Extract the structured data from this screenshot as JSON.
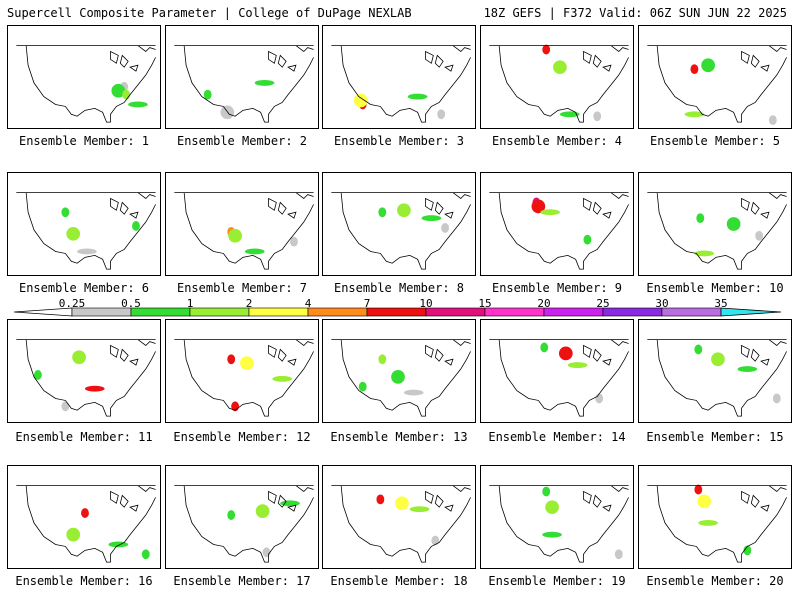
{
  "header": {
    "title_left": "Supercell Composite Parameter | College of DuPage NEXLAB",
    "title_right": "18Z GEFS | F372 Valid: 06Z SUN JUN 22 2025"
  },
  "members": [
    "Ensemble Member: 1",
    "Ensemble Member: 2",
    "Ensemble Member: 3",
    "Ensemble Member: 4",
    "Ensemble Member: 5",
    "Ensemble Member: 6",
    "Ensemble Member: 7",
    "Ensemble Member: 8",
    "Ensemble Member: 9",
    "Ensemble Member: 10",
    "Ensemble Member: 11",
    "Ensemble Member: 12",
    "Ensemble Member: 13",
    "Ensemble Member: 14",
    "Ensemble Member: 15",
    "Ensemble Member: 16",
    "Ensemble Member: 17",
    "Ensemble Member: 18",
    "Ensemble Member: 19",
    "Ensemble Member: 20"
  ],
  "colorbar": {
    "labels": [
      "0.25",
      "0.5",
      "1",
      "2",
      "4",
      "7",
      "10",
      "15",
      "20",
      "25",
      "30",
      "35"
    ],
    "colors": [
      "#c8c8c8",
      "#33dd33",
      "#99ee33",
      "#ffff44",
      "#ff8c1a",
      "#ee1111",
      "#e0117a",
      "#ff33cc",
      "#cc22ee",
      "#8a2be2",
      "#b86ee0",
      "#33e6ee"
    ]
  },
  "map_features": {
    "blobs": [
      [
        [
          118,
          62,
          "#c8c8c8"
        ],
        [
          112,
          66,
          "#33dd33"
        ],
        [
          132,
          80,
          "#33dd33"
        ],
        [
          120,
          70,
          "#99ee33"
        ]
      ],
      [
        [
          42,
          70,
          "#33dd33"
        ],
        [
          62,
          88,
          "#c8c8c8"
        ],
        [
          100,
          58,
          "#33dd33"
        ]
      ],
      [
        [
          40,
          80,
          "#ee1111"
        ],
        [
          38,
          76,
          "#ffff44"
        ],
        [
          96,
          72,
          "#33dd33"
        ],
        [
          120,
          90,
          "#c8c8c8"
        ]
      ],
      [
        [
          66,
          24,
          "#ee1111"
        ],
        [
          80,
          42,
          "#99ee33"
        ],
        [
          90,
          90,
          "#33dd33"
        ],
        [
          118,
          92,
          "#c8c8c8"
        ]
      ],
      [
        [
          56,
          44,
          "#ee1111"
        ],
        [
          70,
          40,
          "#33dd33"
        ],
        [
          56,
          90,
          "#99ee33"
        ],
        [
          136,
          96,
          "#c8c8c8"
        ]
      ],
      [
        [
          58,
          40,
          "#33dd33"
        ],
        [
          66,
          62,
          "#99ee33"
        ],
        [
          80,
          80,
          "#c8c8c8"
        ],
        [
          130,
          54,
          "#33dd33"
        ]
      ],
      [
        [
          66,
          60,
          "#ff8c1a"
        ],
        [
          70,
          64,
          "#99ee33"
        ],
        [
          90,
          80,
          "#33dd33"
        ],
        [
          130,
          70,
          "#c8c8c8"
        ]
      ],
      [
        [
          60,
          40,
          "#33dd33"
        ],
        [
          82,
          38,
          "#99ee33"
        ],
        [
          110,
          46,
          "#33dd33"
        ],
        [
          124,
          56,
          "#c8c8c8"
        ]
      ],
      [
        [
          56,
          30,
          "#e0117a"
        ],
        [
          58,
          34,
          "#ee1111"
        ],
        [
          70,
          40,
          "#99ee33"
        ],
        [
          108,
          68,
          "#33dd33"
        ]
      ],
      [
        [
          62,
          46,
          "#33dd33"
        ],
        [
          96,
          52,
          "#33dd33"
        ],
        [
          66,
          82,
          "#99ee33"
        ],
        [
          122,
          64,
          "#c8c8c8"
        ]
      ],
      [
        [
          30,
          56,
          "#33dd33"
        ],
        [
          72,
          38,
          "#99ee33"
        ],
        [
          88,
          70,
          "#ee1111"
        ],
        [
          58,
          88,
          "#c8c8c8"
        ]
      ],
      [
        [
          66,
          40,
          "#ee1111"
        ],
        [
          82,
          44,
          "#ffff44"
        ],
        [
          118,
          60,
          "#99ee33"
        ],
        [
          70,
          88,
          "#ee1111"
        ]
      ],
      [
        [
          60,
          40,
          "#99ee33"
        ],
        [
          76,
          58,
          "#33dd33"
        ],
        [
          92,
          74,
          "#c8c8c8"
        ],
        [
          40,
          68,
          "#33dd33"
        ]
      ],
      [
        [
          64,
          28,
          "#33dd33"
        ],
        [
          86,
          34,
          "#ee1111"
        ],
        [
          98,
          46,
          "#99ee33"
        ],
        [
          120,
          80,
          "#c8c8c8"
        ]
      ],
      [
        [
          60,
          30,
          "#33dd33"
        ],
        [
          80,
          40,
          "#99ee33"
        ],
        [
          110,
          50,
          "#33dd33"
        ],
        [
          140,
          80,
          "#c8c8c8"
        ]
      ],
      [
        [
          78,
          48,
          "#ee1111"
        ],
        [
          66,
          70,
          "#99ee33"
        ],
        [
          112,
          80,
          "#33dd33"
        ],
        [
          140,
          90,
          "#33dd33"
        ]
      ],
      [
        [
          66,
          50,
          "#33dd33"
        ],
        [
          98,
          46,
          "#99ee33"
        ],
        [
          126,
          38,
          "#33dd33"
        ],
        [
          102,
          88,
          "#c8c8c8"
        ]
      ],
      [
        [
          58,
          34,
          "#ee1111"
        ],
        [
          80,
          38,
          "#ffff44"
        ],
        [
          98,
          44,
          "#99ee33"
        ],
        [
          114,
          76,
          "#c8c8c8"
        ]
      ],
      [
        [
          66,
          26,
          "#33dd33"
        ],
        [
          72,
          42,
          "#99ee33"
        ],
        [
          72,
          70,
          "#33dd33"
        ],
        [
          140,
          90,
          "#c8c8c8"
        ]
      ],
      [
        [
          60,
          24,
          "#ee1111"
        ],
        [
          66,
          36,
          "#ffff44"
        ],
        [
          70,
          58,
          "#99ee33"
        ],
        [
          110,
          86,
          "#33dd33"
        ]
      ]
    ]
  }
}
